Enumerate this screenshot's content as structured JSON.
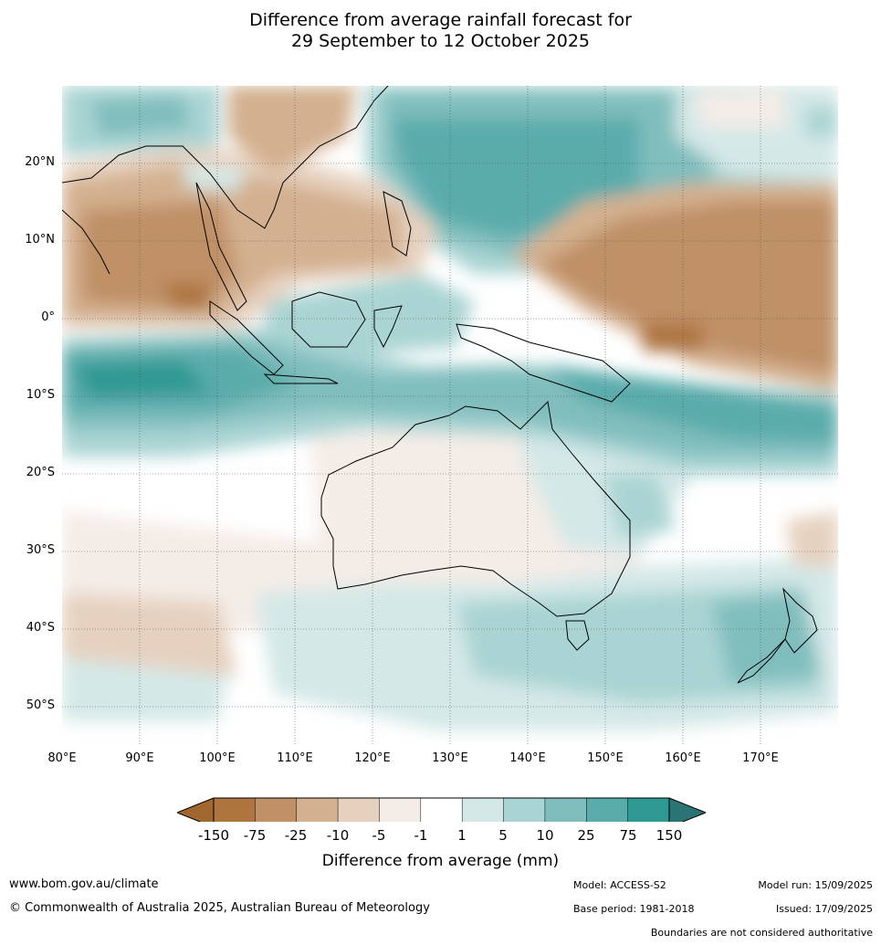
{
  "title_line1": "Difference from average rainfall forecast for",
  "title_line2": "29 September to 12 October 2025",
  "lat_labels": [
    "20°N",
    "10°N",
    "0°",
    "10°S",
    "20°S",
    "30°S",
    "40°S",
    "50°S"
  ],
  "lon_labels": [
    "80°E",
    "90°E",
    "100°E",
    "110°E",
    "120°E",
    "130°E",
    "140°E",
    "150°E",
    "160°E",
    "170°E"
  ],
  "colorbar": {
    "title": "Difference from average (mm)",
    "tick_labels": [
      "-150",
      "-75",
      "-25",
      "-10",
      "-5",
      "-1",
      "1",
      "5",
      "10",
      "25",
      "75",
      "150"
    ],
    "colors": [
      "#a0682e",
      "#ae753f",
      "#c09066",
      "#d3b08f",
      "#e6d1bf",
      "#f4ece7",
      "#ffffff",
      "#d4e8e7",
      "#a9d4d3",
      "#80bebd",
      "#5aacab",
      "#2e9893",
      "#2a7573"
    ]
  },
  "footer": {
    "url": "www.bom.gov.au/climate",
    "copyright": "© Commonwealth of Australia 2025, Australian Bureau of Meteorology",
    "model": "Model: ACCESS-S2",
    "model_run": "Model run: 15/09/2025",
    "base_period": "Base period: 1981-2018",
    "issued": "Issued: 17/09/2025",
    "disclaimer": "Boundaries are not considered authoritative"
  }
}
